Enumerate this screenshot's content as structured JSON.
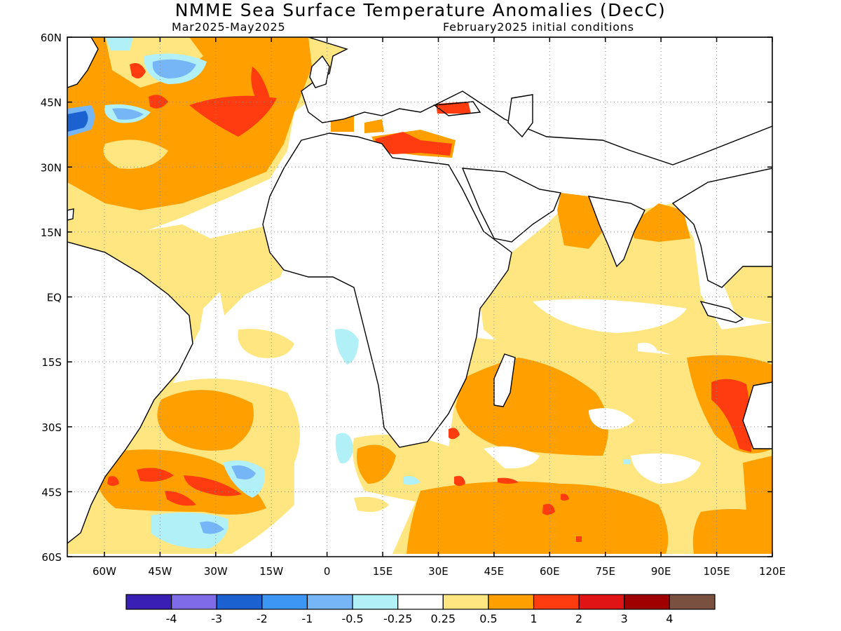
{
  "title": "NMME Sea Surface Temperature Anomalies (DecC)",
  "subtitle_left": "Mar2025-May2025",
  "subtitle_right": "February2025 initial conditions",
  "map": {
    "lon_range": [
      -70,
      120
    ],
    "lat_range": [
      -60,
      60
    ],
    "lat_ticks": [
      {
        "value": 60,
        "label": "60N"
      },
      {
        "value": 45,
        "label": "45N"
      },
      {
        "value": 30,
        "label": "30N"
      },
      {
        "value": 15,
        "label": "15N"
      },
      {
        "value": 0,
        "label": "EQ"
      },
      {
        "value": -15,
        "label": "15S"
      },
      {
        "value": -30,
        "label": "30S"
      },
      {
        "value": -45,
        "label": "45S"
      },
      {
        "value": -60,
        "label": "60S"
      }
    ],
    "lon_ticks": [
      {
        "value": -60,
        "label": "60W"
      },
      {
        "value": -45,
        "label": "45W"
      },
      {
        "value": -30,
        "label": "30W"
      },
      {
        "value": -15,
        "label": "15W"
      },
      {
        "value": 0,
        "label": "0"
      },
      {
        "value": 15,
        "label": "15E"
      },
      {
        "value": 30,
        "label": "30E"
      },
      {
        "value": 45,
        "label": "45E"
      },
      {
        "value": 60,
        "label": "60E"
      },
      {
        "value": 75,
        "label": "75E"
      },
      {
        "value": 90,
        "label": "90E"
      },
      {
        "value": 105,
        "label": "105E"
      },
      {
        "value": 120,
        "label": "120E"
      }
    ]
  },
  "colorbar": {
    "colors": [
      "#3a1fb4",
      "#7f6be8",
      "#1b62d0",
      "#3e96f4",
      "#76b6f7",
      "#b1f0f7",
      "#ffffff",
      "#ffe680",
      "#ffa000",
      "#ff3c10",
      "#e01414",
      "#a00000",
      "#7a5040"
    ],
    "labels": [
      "-4",
      "-3",
      "-2",
      "-1",
      "-0.5",
      "-0.25",
      "0.25",
      "0.5",
      "1",
      "2",
      "3",
      "4"
    ]
  },
  "legend_colors": {
    "weak_positive": "#ffe680",
    "moderate_positive": "#ffa000",
    "strong_positive": "#ff3c10",
    "weak_negative": "#b1f0f7",
    "moderate_negative": "#76b6f7",
    "strong_negative": "#1b62d0",
    "land_mask": "#7a5040"
  }
}
